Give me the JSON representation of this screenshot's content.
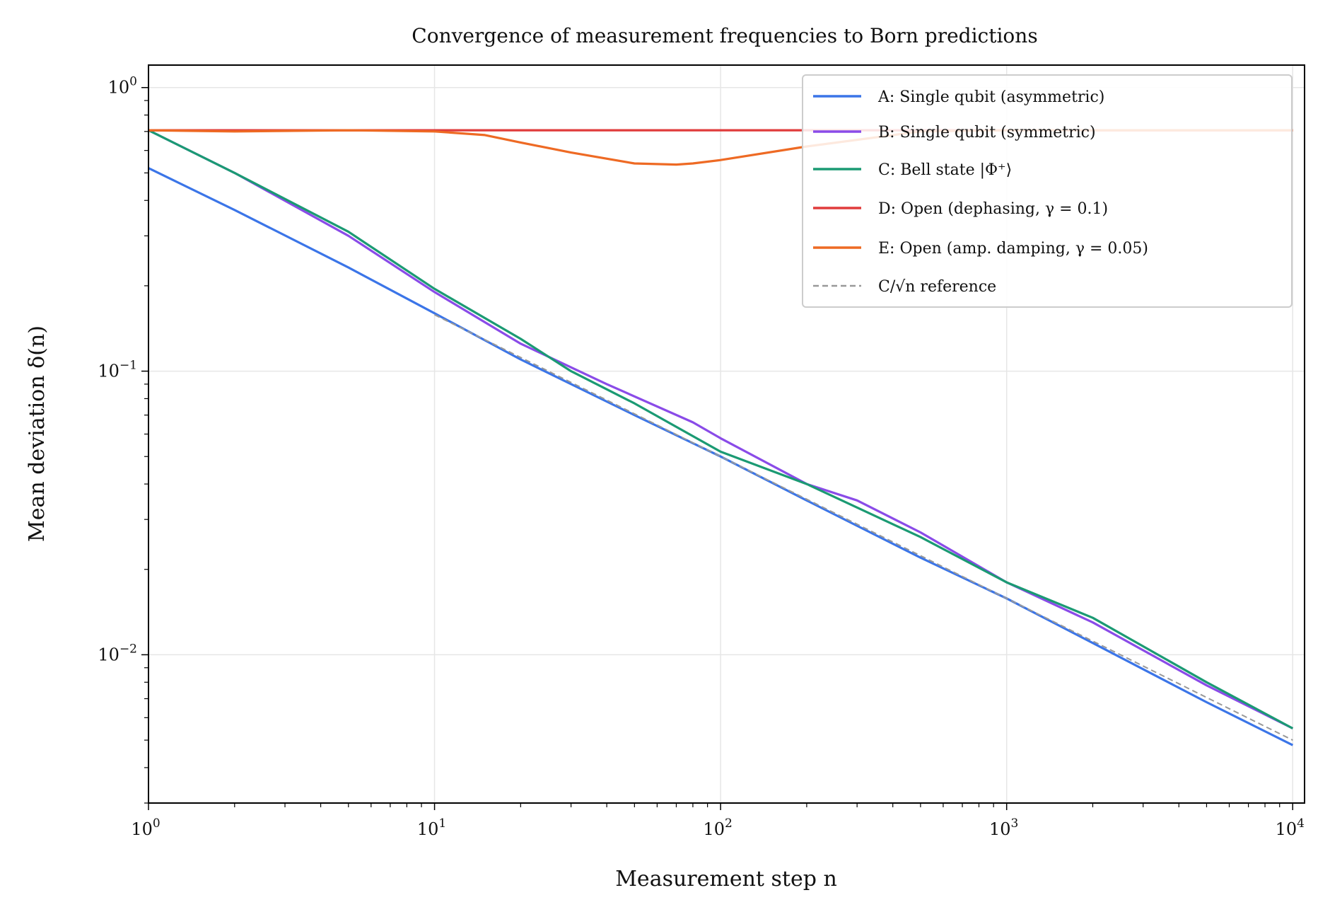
{
  "chart_data": {
    "type": "line",
    "title": "Convergence of measurement frequencies to Born predictions",
    "xlabel": "Measurement step n",
    "ylabel": "Mean deviation δ(n)",
    "xscale": "log",
    "yscale": "log",
    "xlim": [
      1,
      11000
    ],
    "ylim": [
      0.003,
      1.2
    ],
    "grid": true,
    "legend_position": "top-right",
    "x_ticks": [
      {
        "value": 1,
        "base": "10",
        "exp": "0"
      },
      {
        "value": 10,
        "base": "10",
        "exp": "1"
      },
      {
        "value": 100,
        "base": "10",
        "exp": "2"
      },
      {
        "value": 1000,
        "base": "10",
        "exp": "3"
      },
      {
        "value": 10000,
        "base": "10",
        "exp": "4"
      }
    ],
    "y_ticks": [
      {
        "value": 1,
        "base": "10",
        "exp": "0"
      },
      {
        "value": 0.1,
        "base": "10",
        "exp": "−1"
      },
      {
        "value": 0.01,
        "base": "10",
        "exp": "−2"
      }
    ],
    "series": [
      {
        "name": "A: Single qubit (asymmetric)",
        "color": "#3b75e8",
        "dash": false,
        "x": [
          1,
          2,
          5,
          10,
          20,
          50,
          100,
          200,
          500,
          1000,
          2000,
          5000,
          10000
        ],
        "y": [
          0.52,
          0.37,
          0.232,
          0.16,
          0.11,
          0.07,
          0.05,
          0.035,
          0.022,
          0.0158,
          0.011,
          0.0068,
          0.0048
        ]
      },
      {
        "name": "B: Single qubit (symmetric)",
        "color": "#8a4be8",
        "dash": false,
        "x": [
          1,
          2,
          5,
          10,
          20,
          40,
          80,
          100,
          200,
          300,
          500,
          1000,
          2000,
          5000,
          10000
        ],
        "y": [
          0.707,
          0.5,
          0.3,
          0.19,
          0.125,
          0.09,
          0.066,
          0.058,
          0.04,
          0.035,
          0.027,
          0.018,
          0.013,
          0.0078,
          0.0055
        ]
      },
      {
        "name": "C: Bell state |Φ⁺⟩",
        "color": "#1b9a73",
        "dash": false,
        "x": [
          1,
          2,
          5,
          10,
          20,
          30,
          50,
          100,
          200,
          500,
          1000,
          2000,
          5000,
          10000
        ],
        "y": [
          0.707,
          0.5,
          0.31,
          0.195,
          0.13,
          0.1,
          0.077,
          0.052,
          0.04,
          0.026,
          0.018,
          0.0135,
          0.008,
          0.0055
        ]
      },
      {
        "name": "D: Open (dephasing, γ = 0.1)",
        "color": "#e03c3c",
        "dash": false,
        "x": [
          1,
          10000
        ],
        "y": [
          0.707,
          0.707
        ]
      },
      {
        "name": "E: Open (amp. damping, γ = 0.05)",
        "color": "#ee6a24",
        "dash": false,
        "x": [
          1,
          2,
          5,
          10,
          15,
          20,
          30,
          50,
          70,
          80,
          100,
          200,
          500,
          1000,
          10000
        ],
        "y": [
          0.707,
          0.7,
          0.707,
          0.7,
          0.68,
          0.64,
          0.59,
          0.54,
          0.535,
          0.54,
          0.555,
          0.62,
          0.7,
          0.707,
          0.707
        ]
      },
      {
        "name": "C/√n reference",
        "color": "#999999",
        "dash": true,
        "x": [
          10,
          100,
          1000,
          10000
        ],
        "y": [
          0.158,
          0.05,
          0.0158,
          0.005
        ]
      }
    ]
  }
}
